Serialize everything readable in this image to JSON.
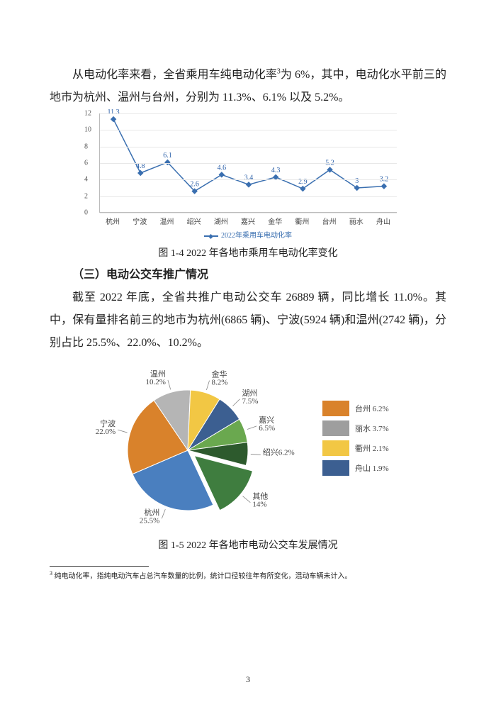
{
  "para1_a": "从电动化率来看，全省乘用车纯电动化率",
  "para1_sup": "3",
  "para1_b": "为 6%，其中，电动化水平前三的地市为杭州、温州与台州，分别为 11.3%、6.1% 以及 5.2%。",
  "line_chart": {
    "type": "line",
    "categories": [
      "杭州",
      "宁波",
      "温州",
      "绍兴",
      "湖州",
      "嘉兴",
      "金华",
      "衢州",
      "台州",
      "丽水",
      "舟山"
    ],
    "values": [
      11.3,
      4.8,
      6.1,
      2.6,
      4.6,
      3.4,
      4.3,
      2.9,
      5.2,
      3.0,
      3.2
    ],
    "ylim": [
      0,
      12
    ],
    "ytick_step": 2,
    "line_color": "#3a6fb0",
    "marker": "diamond",
    "marker_color": "#3a6fb0",
    "grid_color": "#e8e8e8",
    "axis_color": "#bbbbbb",
    "label_color": "#2a5fa8",
    "label_fontsize": 10,
    "legend_label": "2022年乘用车电动化率"
  },
  "caption1": "图 1-4  2022 年各地市乘用车电动化率变化",
  "heading": "（三）电动公交车推广情况",
  "para2": "截至 2022 年底，全省共推广电动公交车 26889 辆，同比增长 11.0%。其中，保有量排名前三的地市为杭州(6865 辆)、宁波(5924 辆)和温州(2742 辆)，分别占比 25.5%、22.0%、10.2%。",
  "pie_chart": {
    "type": "pie",
    "main_slices": [
      {
        "label": "杭州",
        "pct": 25.5,
        "color": "#4a7fbf",
        "label_text": "杭州\n25.5%"
      },
      {
        "label": "宁波",
        "pct": 22.0,
        "color": "#d9822b",
        "label_text": "宁波\n22.0%"
      },
      {
        "label": "温州",
        "pct": 10.2,
        "color": "#b5b5b5",
        "label_text": "温州\n10.2%"
      },
      {
        "label": "金华",
        "pct": 8.2,
        "color": "#f2c744",
        "label_text": "金华\n8.2%"
      },
      {
        "label": "湖州",
        "pct": 7.5,
        "color": "#3c5f91",
        "label_text": "湖州\n7.5%"
      },
      {
        "label": "嘉兴",
        "pct": 6.5,
        "color": "#6aa84f",
        "label_text": "嘉兴\n6.5%"
      },
      {
        "label": "绍兴",
        "pct": 6.2,
        "color": "#2d5a2d",
        "label_text": "绍兴6.2%"
      },
      {
        "label": "其他",
        "pct": 14.0,
        "color": "#3f7d3f",
        "label_text": "其他\n14%"
      }
    ],
    "other_breakdown": [
      {
        "label": "台州 6.2%",
        "color": "#d9822b"
      },
      {
        "label": "丽水 3.7%",
        "color": "#9e9e9e"
      },
      {
        "label": "衢州 2.1%",
        "color": "#f2c744"
      },
      {
        "label": "舟山 1.9%",
        "color": "#3c5f91"
      }
    ],
    "start_angle_deg": 65,
    "radius": 85,
    "pull_other": 12,
    "background": "#ffffff"
  },
  "caption2": "图 1-5  2022 年各地市电动公交车发展情况",
  "footnote_marker": "3",
  "footnote_text": " 纯电动化率，指纯电动汽车占总汽车数量的比例，统计口径较往年有所变化，混动车辆未计入。",
  "page_number": "3"
}
